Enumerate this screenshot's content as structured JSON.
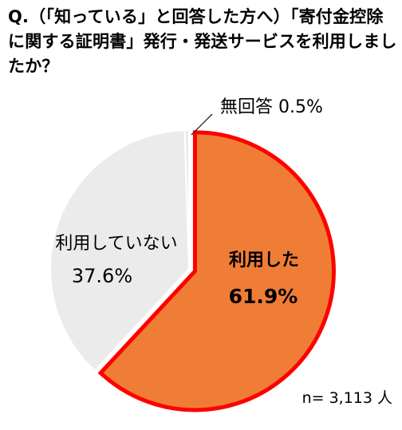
{
  "question": {
    "prefix": "Q.",
    "text": "（「知っている」と回答した方へ）「寄付金控除に関する証明書」発行・発送サービスを利用しましたか？"
  },
  "chart_data": {
    "type": "pie",
    "title": "Q.（「知っている」と回答した方へ）「寄付金控除に関する証明書」発行・発送サービスを利用しましたか？",
    "slices": [
      {
        "label": "利用した",
        "value": 61.9,
        "display": "61.9%",
        "color": "#ef7d36",
        "edge": "#ff0000",
        "exploded": true
      },
      {
        "label": "利用していない",
        "value": 37.6,
        "display": "37.6%",
        "color": "#ebebeb",
        "edge": "#ffffff",
        "exploded": false
      },
      {
        "label": "無回答",
        "value": 0.5,
        "display": "0.5%",
        "color": "#ebebeb",
        "edge": "#ffffff",
        "exploded": false
      }
    ],
    "sample_size": "n= 3,113 人",
    "legend": "none"
  }
}
